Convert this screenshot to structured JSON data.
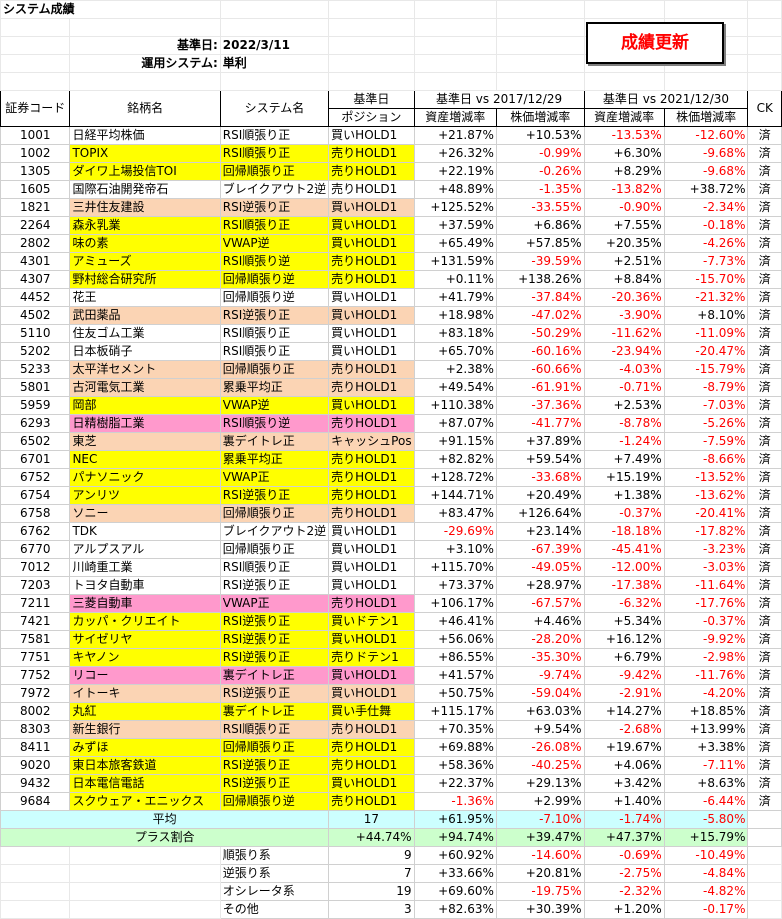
{
  "title": "システム成績",
  "base_date_label": "基準日:",
  "base_date": "2022/3/11",
  "system_label": "運用システム:",
  "system_value": "単利",
  "update_button": "成績更新",
  "headers": {
    "code": "証券コード",
    "name": "銘柄名",
    "system": "システム名",
    "base_top": "基準日",
    "position": "ポジション",
    "range1": "基準日 vs 2017/12/29",
    "range2": "基準日 vs 2021/12/30",
    "asset": "資産増減率",
    "price": "株価増減率",
    "asset2": "資産増減率",
    "price2": "株価増減率",
    "ck": "CK"
  },
  "rows": [
    {
      "code": "1001",
      "name": "日経平均株価",
      "system": "RSI順張り正",
      "pos": "買いHOLD1",
      "a1": "+21.87%",
      "p1": "+10.53%",
      "a2": "-13.53%",
      "p2": "-12.60%",
      "ck": "済",
      "color": "w"
    },
    {
      "code": "1002",
      "name": "TOPIX",
      "system": "RSI順張り正",
      "pos": "売りHOLD1",
      "a1": "+26.32%",
      "p1": "-0.99%",
      "a2": "+6.30%",
      "p2": "-9.68%",
      "ck": "済",
      "color": "y"
    },
    {
      "code": "1305",
      "name": "ダイワ上場投信TOI",
      "system": "回帰順張り正",
      "pos": "売りHOLD1",
      "a1": "+22.19%",
      "p1": "-0.26%",
      "a2": "+8.29%",
      "p2": "-9.68%",
      "ck": "済",
      "color": "y"
    },
    {
      "code": "1605",
      "name": "国際石油開発帝石",
      "system": "ブレイクアウト2逆",
      "pos": "売りHOLD1",
      "a1": "+48.89%",
      "p1": "-1.35%",
      "a2": "-13.82%",
      "p2": "+38.72%",
      "ck": "済",
      "color": "w"
    },
    {
      "code": "1821",
      "name": "三井住友建設",
      "system": "RSI逆張り正",
      "pos": "買いHOLD1",
      "a1": "+125.52%",
      "p1": "-33.55%",
      "a2": "-0.90%",
      "p2": "-2.34%",
      "ck": "済",
      "color": "o"
    },
    {
      "code": "2264",
      "name": "森永乳業",
      "system": "RSI順張り正",
      "pos": "買いHOLD1",
      "a1": "+37.59%",
      "p1": "+6.86%",
      "a2": "+7.55%",
      "p2": "-0.18%",
      "ck": "済",
      "color": "y"
    },
    {
      "code": "2802",
      "name": "味の素",
      "system": "VWAP逆",
      "pos": "買いHOLD1",
      "a1": "+65.49%",
      "p1": "+57.85%",
      "a2": "+20.35%",
      "p2": "-4.26%",
      "ck": "済",
      "color": "y"
    },
    {
      "code": "4301",
      "name": "アミューズ",
      "system": "RSI順張り逆",
      "pos": "売りHOLD1",
      "a1": "+131.59%",
      "p1": "-39.59%",
      "a2": "+2.51%",
      "p2": "-7.73%",
      "ck": "済",
      "color": "y"
    },
    {
      "code": "4307",
      "name": "野村総合研究所",
      "system": "回帰順張り逆",
      "pos": "売りHOLD1",
      "a1": "+0.11%",
      "p1": "+138.26%",
      "a2": "+8.84%",
      "p2": "-15.70%",
      "ck": "済",
      "color": "y"
    },
    {
      "code": "4452",
      "name": "花王",
      "system": "回帰順張り逆",
      "pos": "買いHOLD1",
      "a1": "+41.79%",
      "p1": "-37.84%",
      "a2": "-20.36%",
      "p2": "-21.32%",
      "ck": "済",
      "color": "w"
    },
    {
      "code": "4502",
      "name": "武田薬品",
      "system": "RSI逆張り正",
      "pos": "買いHOLD1",
      "a1": "+18.98%",
      "p1": "-47.02%",
      "a2": "-3.90%",
      "p2": "+8.10%",
      "ck": "済",
      "color": "o"
    },
    {
      "code": "5110",
      "name": "住友ゴム工業",
      "system": "RSI順張り正",
      "pos": "買いHOLD1",
      "a1": "+83.18%",
      "p1": "-50.29%",
      "a2": "-11.62%",
      "p2": "-11.09%",
      "ck": "済",
      "color": "w"
    },
    {
      "code": "5202",
      "name": "日本板硝子",
      "system": "RSI順張り正",
      "pos": "買いHOLD1",
      "a1": "+65.70%",
      "p1": "-60.16%",
      "a2": "-23.94%",
      "p2": "-20.47%",
      "ck": "済",
      "color": "w"
    },
    {
      "code": "5233",
      "name": "太平洋セメント",
      "system": "回帰順張り正",
      "pos": "売りHOLD1",
      "a1": "+2.38%",
      "p1": "-60.66%",
      "a2": "-4.03%",
      "p2": "-15.79%",
      "ck": "済",
      "color": "o"
    },
    {
      "code": "5801",
      "name": "古河電気工業",
      "system": "累乗平均正",
      "pos": "売りHOLD1",
      "a1": "+49.54%",
      "p1": "-61.91%",
      "a2": "-0.71%",
      "p2": "-8.79%",
      "ck": "済",
      "color": "o"
    },
    {
      "code": "5959",
      "name": "岡部",
      "system": "VWAP逆",
      "pos": "買いHOLD1",
      "a1": "+110.38%",
      "p1": "-37.36%",
      "a2": "+2.53%",
      "p2": "-7.03%",
      "ck": "済",
      "color": "y"
    },
    {
      "code": "6293",
      "name": "日精樹脂工業",
      "system": "RSI順張り逆",
      "pos": "売りHOLD1",
      "a1": "+87.07%",
      "p1": "-41.77%",
      "a2": "-8.78%",
      "p2": "-5.26%",
      "ck": "済",
      "color": "p"
    },
    {
      "code": "6502",
      "name": "東芝",
      "system": "裏デイトレ正",
      "pos": "キャッシュPos",
      "a1": "+91.15%",
      "p1": "+37.89%",
      "a2": "-1.24%",
      "p2": "-7.59%",
      "ck": "済",
      "color": "o"
    },
    {
      "code": "6701",
      "name": "NEC",
      "system": "累乗平均正",
      "pos": "売りHOLD1",
      "a1": "+82.82%",
      "p1": "+59.54%",
      "a2": "+7.49%",
      "p2": "-8.66%",
      "ck": "済",
      "color": "y"
    },
    {
      "code": "6752",
      "name": "パナソニック",
      "system": "VWAP正",
      "pos": "売りHOLD1",
      "a1": "+128.72%",
      "p1": "-33.68%",
      "a2": "+15.19%",
      "p2": "-13.52%",
      "ck": "済",
      "color": "y"
    },
    {
      "code": "6754",
      "name": "アンリツ",
      "system": "RSI逆張り正",
      "pos": "売りHOLD1",
      "a1": "+144.71%",
      "p1": "+20.49%",
      "a2": "+1.38%",
      "p2": "-13.62%",
      "ck": "済",
      "color": "y"
    },
    {
      "code": "6758",
      "name": "ソニー",
      "system": "回帰順張り正",
      "pos": "売りHOLD1",
      "a1": "+83.47%",
      "p1": "+126.64%",
      "a2": "-0.37%",
      "p2": "-20.41%",
      "ck": "済",
      "color": "o"
    },
    {
      "code": "6762",
      "name": "TDK",
      "system": "ブレイクアウト2逆",
      "pos": "買いHOLD1",
      "a1": "-29.69%",
      "p1": "+23.14%",
      "a2": "-18.18%",
      "p2": "-17.82%",
      "ck": "済",
      "color": "w"
    },
    {
      "code": "6770",
      "name": "アルプスアル",
      "system": "回帰順張り正",
      "pos": "買いHOLD1",
      "a1": "+3.10%",
      "p1": "-67.39%",
      "a2": "-45.41%",
      "p2": "-3.23%",
      "ck": "済",
      "color": "w"
    },
    {
      "code": "7012",
      "name": "川崎重工業",
      "system": "RSI順張り正",
      "pos": "買いHOLD1",
      "a1": "+115.70%",
      "p1": "-49.05%",
      "a2": "-12.00%",
      "p2": "-3.03%",
      "ck": "済",
      "color": "w"
    },
    {
      "code": "7203",
      "name": "トヨタ自動車",
      "system": "RSI逆張り正",
      "pos": "買いHOLD1",
      "a1": "+73.37%",
      "p1": "+28.97%",
      "a2": "-17.38%",
      "p2": "-11.64%",
      "ck": "済",
      "color": "w"
    },
    {
      "code": "7211",
      "name": "三菱自動車",
      "system": "VWAP正",
      "pos": "売りHOLD1",
      "a1": "+106.17%",
      "p1": "-67.57%",
      "a2": "-6.32%",
      "p2": "-17.76%",
      "ck": "済",
      "color": "p"
    },
    {
      "code": "7421",
      "name": "カッパ・クリエイト",
      "system": "RSI逆張り正",
      "pos": "買いドテン1",
      "a1": "+46.41%",
      "p1": "+4.46%",
      "a2": "+5.34%",
      "p2": "-0.37%",
      "ck": "済",
      "color": "y"
    },
    {
      "code": "7581",
      "name": "サイゼリヤ",
      "system": "RSI逆張り正",
      "pos": "買いHOLD1",
      "a1": "+56.06%",
      "p1": "-28.20%",
      "a2": "+16.12%",
      "p2": "-9.92%",
      "ck": "済",
      "color": "y"
    },
    {
      "code": "7751",
      "name": "キヤノン",
      "system": "RSI逆張り正",
      "pos": "売りドテン1",
      "a1": "+86.55%",
      "p1": "-35.30%",
      "a2": "+6.79%",
      "p2": "-2.98%",
      "ck": "済",
      "color": "y"
    },
    {
      "code": "7752",
      "name": "リコー",
      "system": "裏デイトレ正",
      "pos": "買いHOLD1",
      "a1": "+41.57%",
      "p1": "-9.74%",
      "a2": "-9.42%",
      "p2": "-11.76%",
      "ck": "済",
      "color": "p"
    },
    {
      "code": "7972",
      "name": "イトーキ",
      "system": "RSI逆張り正",
      "pos": "買いHOLD1",
      "a1": "+50.75%",
      "p1": "-59.04%",
      "a2": "-2.91%",
      "p2": "-4.20%",
      "ck": "済",
      "color": "o"
    },
    {
      "code": "8002",
      "name": "丸紅",
      "system": "裏デイトレ正",
      "pos": "買い手仕舞",
      "a1": "+115.17%",
      "p1": "+63.03%",
      "a2": "+14.27%",
      "p2": "+18.85%",
      "ck": "済",
      "color": "y"
    },
    {
      "code": "8303",
      "name": "新生銀行",
      "system": "RSI順張り正",
      "pos": "売りHOLD1",
      "a1": "+70.35%",
      "p1": "+9.54%",
      "a2": "-2.68%",
      "p2": "+13.99%",
      "ck": "済",
      "color": "o"
    },
    {
      "code": "8411",
      "name": "みずほ",
      "system": "回帰順張り正",
      "pos": "売りHOLD1",
      "a1": "+69.88%",
      "p1": "-26.08%",
      "a2": "+19.67%",
      "p2": "+3.38%",
      "ck": "済",
      "color": "y"
    },
    {
      "code": "9020",
      "name": "東日本旅客鉄道",
      "system": "RSI逆張り正",
      "pos": "売りHOLD1",
      "a1": "+58.36%",
      "p1": "-40.25%",
      "a2": "+4.06%",
      "p2": "-7.11%",
      "ck": "済",
      "color": "y"
    },
    {
      "code": "9432",
      "name": "日本電信電話",
      "system": "RSI逆張り正",
      "pos": "買いHOLD1",
      "a1": "+22.37%",
      "p1": "+29.13%",
      "a2": "+3.42%",
      "p2": "+8.63%",
      "ck": "済",
      "color": "y"
    },
    {
      "code": "9684",
      "name": "スクウェア・エニックス",
      "system": "回帰順張り逆",
      "pos": "売りHOLD1",
      "a1": "-1.36%",
      "p1": "+2.99%",
      "a2": "+1.40%",
      "p2": "-6.44%",
      "ck": "済",
      "color": "y"
    }
  ],
  "average": {
    "label": "平均",
    "count": "17",
    "a1": "+61.95%",
    "p1": "-7.10%",
    "a2": "-1.74%",
    "p2": "-5.80%"
  },
  "plus_ratio": {
    "label": "プラス割合",
    "pos": "+44.74%",
    "a1": "+94.74%",
    "p1": "+39.47%",
    "a2": "+47.37%",
    "p2": "+15.79%"
  },
  "categories": [
    {
      "label": "順張り系",
      "count": "9",
      "a1": "+60.92%",
      "p1": "-14.60%",
      "a2": "-0.69%",
      "p2": "-10.49%"
    },
    {
      "label": "逆張り系",
      "count": "7",
      "a1": "+33.66%",
      "p1": "+20.81%",
      "a2": "-2.75%",
      "p2": "-4.84%"
    },
    {
      "label": "オシレータ系",
      "count": "19",
      "a1": "+69.60%",
      "p1": "-19.75%",
      "a2": "-2.32%",
      "p2": "-4.82%"
    },
    {
      "label": "その他",
      "count": "3",
      "a1": "+82.63%",
      "p1": "+30.39%",
      "a2": "+1.20%",
      "p2": "-0.17%"
    }
  ],
  "colors": {
    "yellow": "#ffff00",
    "orange": "#fbd4b4",
    "pink": "#ff99cc",
    "avg": "#ccffff",
    "plus": "#ccffcc",
    "negative": "#ff0000"
  }
}
